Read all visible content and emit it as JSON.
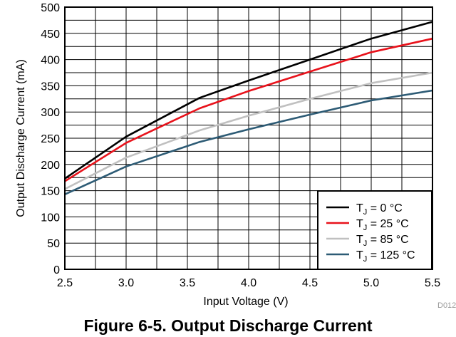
{
  "chart_data": {
    "type": "line",
    "title": "Figure 6-5. Output Discharge Current",
    "xlabel": "Input Voltage (V)",
    "ylabel": "Output Discharge Current (mA)",
    "xlim": [
      2.5,
      5.5
    ],
    "ylim": [
      0,
      500
    ],
    "x_ticks": [
      "2.5",
      "3.0",
      "3.5",
      "4.0",
      "4.5",
      "5.0",
      "5.5"
    ],
    "y_ticks": [
      "0",
      "50",
      "100",
      "150",
      "200",
      "250",
      "300",
      "350",
      "400",
      "450",
      "500"
    ],
    "grid": true,
    "legend_position": "bottom-right",
    "figure_id": "D012",
    "series": [
      {
        "name": "T",
        "subscript": "J",
        "suffix": " = 0 °C",
        "color": "#000000",
        "x": [
          2.5,
          3.0,
          3.6,
          4.0,
          4.5,
          5.0,
          5.5
        ],
        "y": [
          173,
          253,
          327,
          360,
          400,
          440,
          472
        ]
      },
      {
        "name": "T",
        "subscript": "J",
        "suffix": " = 25 °C",
        "color": "#e8121b",
        "x": [
          2.5,
          3.0,
          3.6,
          4.0,
          4.5,
          5.0,
          5.5
        ],
        "y": [
          168,
          241,
          307,
          340,
          377,
          414,
          440
        ]
      },
      {
        "name": "T",
        "subscript": "J",
        "suffix": " = 85 °C",
        "color": "#c0c0c0",
        "x": [
          2.5,
          3.0,
          3.6,
          4.0,
          4.5,
          5.0,
          5.5
        ],
        "y": [
          153,
          213,
          265,
          293,
          325,
          355,
          375
        ]
      },
      {
        "name": "T",
        "subscript": "J",
        "suffix": " = 125 °C",
        "color": "#2d5b75",
        "x": [
          2.5,
          3.0,
          3.6,
          4.0,
          4.5,
          5.0,
          5.5
        ],
        "y": [
          143,
          196,
          243,
          267,
          295,
          322,
          341
        ]
      }
    ]
  }
}
